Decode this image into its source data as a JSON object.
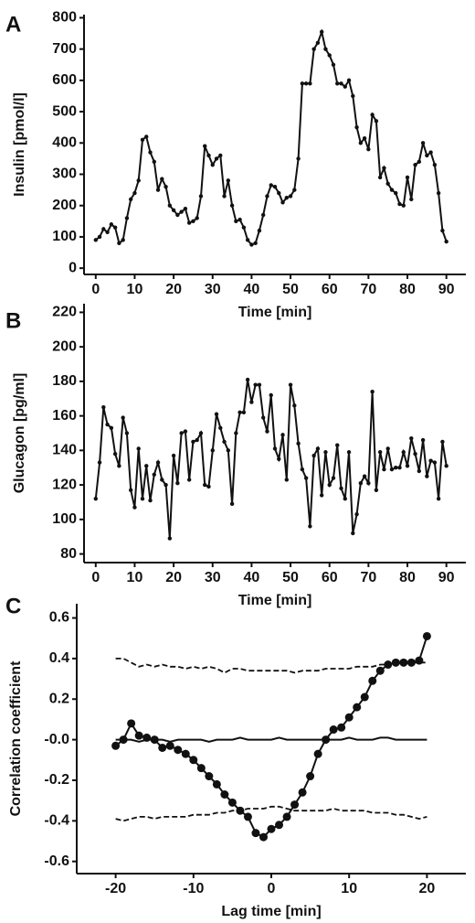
{
  "chart_data": [
    {
      "type": "line",
      "label": "A",
      "xlabel": "Time [min]",
      "ylabel": "Insulin [pmol/l]",
      "x": [
        0,
        1,
        2,
        3,
        4,
        5,
        6,
        7,
        8,
        9,
        10,
        11,
        12,
        13,
        14,
        15,
        16,
        17,
        18,
        19,
        20,
        21,
        22,
        23,
        24,
        25,
        26,
        27,
        28,
        29,
        30,
        31,
        32,
        33,
        34,
        35,
        36,
        37,
        38,
        39,
        40,
        41,
        42,
        43,
        44,
        45,
        46,
        47,
        48,
        49,
        50,
        51,
        52,
        53,
        54,
        55,
        56,
        57,
        58,
        59,
        60,
        61,
        62,
        63,
        64,
        65,
        66,
        67,
        68,
        69,
        70,
        71,
        72,
        73,
        74,
        75,
        76,
        77,
        78,
        79,
        80,
        81,
        82,
        83,
        84,
        85,
        86,
        87,
        88,
        89,
        90
      ],
      "series": [
        {
          "name": null,
          "color": "#111111",
          "markers": true,
          "dash": false,
          "values": [
            90,
            100,
            125,
            115,
            140,
            130,
            80,
            90,
            160,
            220,
            240,
            280,
            410,
            420,
            370,
            340,
            250,
            285,
            260,
            200,
            185,
            170,
            180,
            190,
            145,
            150,
            160,
            230,
            390,
            360,
            330,
            350,
            360,
            230,
            280,
            200,
            150,
            155,
            130,
            90,
            75,
            80,
            120,
            170,
            230,
            265,
            260,
            240,
            210,
            225,
            230,
            250,
            350,
            590,
            590,
            590,
            700,
            720,
            755,
            700,
            680,
            650,
            590,
            590,
            580,
            600,
            550,
            450,
            400,
            415,
            380,
            490,
            470,
            290,
            320,
            270,
            250,
            240,
            205,
            200,
            290,
            220,
            330,
            340,
            400,
            360,
            370,
            330,
            240,
            120,
            85
          ]
        }
      ],
      "xlim": [
        -3,
        95
      ],
      "xticks": [
        0,
        10,
        20,
        30,
        40,
        50,
        60,
        70,
        80,
        90
      ],
      "ylim": [
        -20,
        810
      ],
      "yticks": [
        0,
        100,
        200,
        300,
        400,
        500,
        600,
        700,
        800
      ]
    },
    {
      "type": "line",
      "label": "B",
      "xlabel": "Time [min]",
      "ylabel": "Glucagon [pg/ml]",
      "x": [
        0,
        1,
        2,
        3,
        4,
        5,
        6,
        7,
        8,
        9,
        10,
        11,
        12,
        13,
        14,
        15,
        16,
        17,
        18,
        19,
        20,
        21,
        22,
        23,
        24,
        25,
        26,
        27,
        28,
        29,
        30,
        31,
        32,
        33,
        34,
        35,
        36,
        37,
        38,
        39,
        40,
        41,
        42,
        43,
        44,
        45,
        46,
        47,
        48,
        49,
        50,
        51,
        52,
        53,
        54,
        55,
        56,
        57,
        58,
        59,
        60,
        61,
        62,
        63,
        64,
        65,
        66,
        67,
        68,
        69,
        70,
        71,
        72,
        73,
        74,
        75,
        76,
        77,
        78,
        79,
        80,
        81,
        82,
        83,
        84,
        85,
        86,
        87,
        88,
        89,
        90
      ],
      "series": [
        {
          "name": null,
          "color": "#111111",
          "markers": true,
          "dash": false,
          "values": [
            112,
            133,
            165,
            155,
            153,
            138,
            131,
            159,
            150,
            117,
            107,
            141,
            112,
            131,
            111,
            126,
            133,
            123,
            120,
            89,
            137,
            121,
            150,
            151,
            123,
            145,
            146,
            150,
            120,
            119,
            140,
            161,
            153,
            145,
            140,
            109,
            150,
            162,
            162,
            181,
            168,
            178,
            178,
            159,
            151,
            172,
            141,
            135,
            149,
            123,
            178,
            166,
            144,
            129,
            124,
            96,
            137,
            141,
            114,
            139,
            120,
            124,
            143,
            118,
            112,
            139,
            92,
            103,
            121,
            125,
            121,
            174,
            117,
            139,
            129,
            141,
            129,
            130,
            130,
            139,
            131,
            147,
            138,
            128,
            146,
            125,
            134,
            133,
            112,
            145,
            131
          ]
        }
      ],
      "xlim": [
        -3,
        95
      ],
      "xticks": [
        0,
        10,
        20,
        30,
        40,
        50,
        60,
        70,
        80,
        90
      ],
      "ylim": [
        75,
        225
      ],
      "yticks": [
        80,
        100,
        120,
        140,
        160,
        180,
        200,
        220
      ]
    },
    {
      "type": "line",
      "label": "C",
      "xlabel": "Lag time [min]",
      "ylabel": "Correlation coefficient",
      "x": [
        -20,
        -19,
        -18,
        -17,
        -16,
        -15,
        -14,
        -13,
        -12,
        -11,
        -10,
        -9,
        -8,
        -7,
        -6,
        -5,
        -4,
        -3,
        -2,
        -1,
        0,
        1,
        2,
        3,
        4,
        5,
        6,
        7,
        8,
        9,
        10,
        11,
        12,
        13,
        14,
        15,
        16,
        17,
        18,
        19,
        20
      ],
      "series": [
        {
          "name": null,
          "color": "#111111",
          "markers": true,
          "dash": false,
          "values": [
            -0.03,
            0.0,
            0.08,
            0.02,
            0.01,
            0.0,
            -0.04,
            -0.03,
            -0.05,
            -0.07,
            -0.1,
            -0.14,
            -0.18,
            -0.22,
            -0.27,
            -0.31,
            -0.35,
            -0.38,
            -0.46,
            -0.48,
            -0.44,
            -0.42,
            -0.38,
            -0.32,
            -0.26,
            -0.18,
            -0.07,
            0.0,
            0.05,
            0.06,
            0.11,
            0.16,
            0.21,
            0.29,
            0.34,
            0.37,
            0.38,
            0.38,
            0.38,
            0.39,
            0.51
          ]
        },
        {
          "name": null,
          "color": "#111111",
          "markers": false,
          "dash": false,
          "values": [
            0.0,
            0.0,
            0.0,
            -0.01,
            0.0,
            0.0,
            0.0,
            -0.01,
            0.0,
            0.0,
            0.0,
            0.0,
            -0.01,
            0.0,
            0.0,
            0.0,
            0.01,
            0.0,
            0.0,
            0.0,
            0.0,
            0.01,
            0.0,
            0.0,
            0.0,
            0.0,
            0.0,
            0.0,
            0.0,
            0.0,
            0.01,
            0.0,
            0.0,
            0.0,
            0.01,
            0.01,
            0.0,
            0.0,
            0.0,
            0.0,
            0.0
          ]
        },
        {
          "name": null,
          "color": "#111111",
          "markers": false,
          "dash": true,
          "values": [
            0.4,
            0.4,
            0.38,
            0.36,
            0.37,
            0.36,
            0.37,
            0.36,
            0.36,
            0.35,
            0.36,
            0.35,
            0.36,
            0.35,
            0.33,
            0.35,
            0.35,
            0.34,
            0.34,
            0.34,
            0.34,
            0.34,
            0.34,
            0.33,
            0.34,
            0.34,
            0.34,
            0.35,
            0.35,
            0.35,
            0.35,
            0.36,
            0.36,
            0.36,
            0.37,
            0.37,
            0.38,
            0.38,
            0.38,
            0.38,
            0.38
          ]
        },
        {
          "name": null,
          "color": "#111111",
          "markers": false,
          "dash": true,
          "values": [
            -0.39,
            -0.4,
            -0.39,
            -0.38,
            -0.38,
            -0.39,
            -0.38,
            -0.38,
            -0.38,
            -0.38,
            -0.37,
            -0.37,
            -0.37,
            -0.36,
            -0.36,
            -0.35,
            -0.35,
            -0.34,
            -0.34,
            -0.34,
            -0.33,
            -0.33,
            -0.34,
            -0.35,
            -0.35,
            -0.35,
            -0.35,
            -0.35,
            -0.34,
            -0.35,
            -0.35,
            -0.35,
            -0.35,
            -0.36,
            -0.36,
            -0.36,
            -0.37,
            -0.37,
            -0.38,
            -0.39,
            -0.38
          ]
        }
      ],
      "xlim": [
        -25,
        25
      ],
      "xticks": [
        -20,
        -10,
        0,
        10,
        20
      ],
      "ylim": [
        -0.66,
        0.67
      ],
      "yticks": [
        0.6,
        0.4,
        0.2,
        {
          "value": 0,
          "label": "-0.0"
        },
        -0.2,
        -0.4,
        -0.6
      ]
    }
  ]
}
